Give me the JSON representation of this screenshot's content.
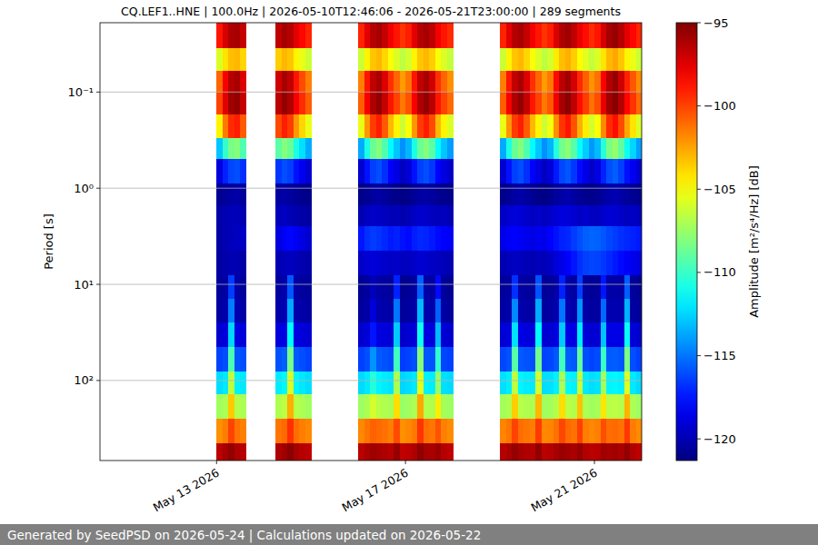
{
  "chart_data": {
    "type": "heatmap",
    "title": "CQ.LEF1..HNE | 100.0Hz | 2026-05-10T12:46:06 - 2026-05-21T23:00:00 | 289 segments",
    "y_label": "Period [s]",
    "footer": "Generated by SeedPSD on 2026-05-24 | Calculations updated on 2026-05-22",
    "color": "jet",
    "log": "y",
    "grid": "y",
    "xlim": [
      "2026-05-10T12:46:06",
      "2026-05-22T00:00:00"
    ],
    "xticks": [
      {
        "value": "2026-05-13T00:00:00",
        "label": "May 13 2026"
      },
      {
        "value": "2026-05-17T00:00:00",
        "label": "May 17 2026"
      },
      {
        "value": "2026-05-21T00:00:00",
        "label": "May 21 2026"
      }
    ],
    "ylim": [
      680,
      0.019
    ],
    "yticks": [
      {
        "value": 0.1,
        "label": "10⁻¹"
      },
      {
        "value": 1,
        "label": "10⁰"
      },
      {
        "value": 10,
        "label": "10¹"
      },
      {
        "value": 100,
        "label": "10²"
      }
    ],
    "colorbar": {
      "label": "Amplitude [m²/s⁴/Hz] [dB]",
      "range": [
        -121.3,
        -95
      ],
      "ticks": [
        {
          "value": -95,
          "label": "−95"
        },
        {
          "value": -100,
          "label": "−100"
        },
        {
          "value": -105,
          "label": "−105"
        },
        {
          "value": -110,
          "label": "−110"
        },
        {
          "value": -115,
          "label": "−115"
        },
        {
          "value": -120,
          "label": "−120"
        }
      ]
    },
    "x": [
      "2026-05-13T00:00:00",
      "2026-05-13T03:00:00",
      "2026-05-13T06:00:00",
      "2026-05-13T09:00:00",
      "2026-05-13T12:00:00",
      "2026-05-13T15:00:00",
      "2026-05-14T06:00:00",
      "2026-05-14T09:00:00",
      "2026-05-14T12:00:00",
      "2026-05-14T15:00:00",
      "2026-05-14T18:00:00",
      "2026-05-14T21:00:00",
      "2026-05-15T00:00:00",
      "2026-05-16T00:00:00",
      "2026-05-16T03:00:00",
      "2026-05-16T06:00:00",
      "2026-05-16T09:00:00",
      "2026-05-16T12:00:00",
      "2026-05-16T15:00:00",
      "2026-05-16T18:00:00",
      "2026-05-16T21:00:00",
      "2026-05-17T00:00:00",
      "2026-05-17T03:00:00",
      "2026-05-17T06:00:00",
      "2026-05-17T09:00:00",
      "2026-05-17T12:00:00",
      "2026-05-17T15:00:00",
      "2026-05-17T18:00:00",
      "2026-05-17T21:00:00",
      "2026-05-18T00:00:00",
      "2026-05-19T00:00:00",
      "2026-05-19T03:00:00",
      "2026-05-19T06:00:00",
      "2026-05-19T09:00:00",
      "2026-05-19T12:00:00",
      "2026-05-19T15:00:00",
      "2026-05-19T18:00:00",
      "2026-05-19T21:00:00",
      "2026-05-20T00:00:00",
      "2026-05-20T03:00:00",
      "2026-05-20T06:00:00",
      "2026-05-20T09:00:00",
      "2026-05-20T12:00:00",
      "2026-05-20T15:00:00",
      "2026-05-20T18:00:00",
      "2026-05-20T21:00:00",
      "2026-05-21T00:00:00",
      "2026-05-21T03:00:00",
      "2026-05-21T06:00:00",
      "2026-05-21T09:00:00",
      "2026-05-21T12:00:00",
      "2026-05-21T15:00:00",
      "2026-05-21T18:00:00",
      "2026-05-21T21:00:00",
      "2026-05-22T00:00:00"
    ],
    "y": [
      0.019,
      0.035,
      0.06,
      0.1,
      0.17,
      0.3,
      0.5,
      0.9,
      1.5,
      2.5,
      4.5,
      8,
      14,
      25,
      45,
      80,
      140,
      250,
      450,
      680
    ],
    "values": [
      [
        -98.8,
        -97.2,
        -96.2,
        -96.0,
        -96.8,
        null,
        -96.6,
        -96.0,
        -96.4,
        -97.6,
        -98.4,
        -99.2,
        null,
        -99.2,
        -97.6,
        -96.4,
        -96.0,
        -96.8,
        -98.0,
        -98.8,
        -99.6,
        -99.0,
        -97.6,
        -96.4,
        -96.0,
        -96.6,
        -98.0,
        -98.8,
        -99.4,
        null,
        -99.2,
        -97.6,
        -96.4,
        -96.0,
        -96.8,
        -98.0,
        -98.8,
        -99.6,
        -99.0,
        -97.4,
        -96.2,
        -95.8,
        -96.6,
        -97.8,
        -98.6,
        -99.4,
        -98.8,
        -97.2,
        -96.0,
        -95.6,
        -96.4,
        -97.6,
        -98.4,
        -99.2
      ],
      [
        -105.8,
        -104.2,
        -103.2,
        -103.0,
        -103.8,
        null,
        -103.6,
        -103.0,
        -103.4,
        -104.6,
        -105.4,
        -106.2,
        null,
        -106.2,
        -104.6,
        -103.4,
        -103.0,
        -103.8,
        -105.0,
        -105.8,
        -106.6,
        -106.0,
        -104.6,
        -103.4,
        -103.0,
        -103.6,
        -105.0,
        -105.8,
        -106.4,
        null,
        -106.2,
        -104.6,
        -103.4,
        -103.0,
        -103.8,
        -105.0,
        -105.8,
        -106.6,
        -106.0,
        -104.4,
        -103.2,
        -102.8,
        -103.6,
        -104.8,
        -105.6,
        -106.4,
        -105.8,
        -104.2,
        -103.0,
        -102.6,
        -103.4,
        -104.6,
        -105.4,
        -106.2
      ],
      [
        -100.9,
        -98.1,
        -96.4,
        -96.0,
        -97.4,
        null,
        -97.1,
        -96.0,
        -96.7,
        -98.8,
        -100.2,
        -101.6,
        null,
        -101.6,
        -98.8,
        -96.7,
        -96.0,
        -97.4,
        -99.5,
        -100.9,
        -102.3,
        -101.3,
        -98.8,
        -96.7,
        -96.0,
        -97.1,
        -99.5,
        -100.9,
        -102.0,
        null,
        -101.6,
        -98.8,
        -96.7,
        -96.0,
        -97.4,
        -99.5,
        -100.9,
        -102.3,
        -101.4,
        -98.5,
        -96.5,
        -95.8,
        -97.2,
        -99.3,
        -100.7,
        -102.1,
        -101.2,
        -98.3,
        -96.3,
        -95.6,
        -97.0,
        -99.1,
        -100.5,
        -101.9
      ],
      [
        -100.0,
        -97.5,
        -95.8,
        -95.5,
        -96.8,
        null,
        -96.5,
        -95.5,
        -96.2,
        -98.1,
        -99.4,
        -100.7,
        null,
        -100.7,
        -98.1,
        -96.2,
        -95.5,
        -96.8,
        -98.8,
        -100.0,
        -101.4,
        -100.4,
        -98.1,
        -96.2,
        -95.5,
        -96.5,
        -98.8,
        -100.0,
        -101.0,
        null,
        -100.7,
        -98.1,
        -96.2,
        -95.5,
        -96.8,
        -98.8,
        -100.0,
        -101.4,
        -100.5,
        -97.9,
        -96.0,
        -95.3,
        -96.6,
        -98.6,
        -99.8,
        -101.2,
        -100.3,
        -97.7,
        -95.8,
        -95.2,
        -96.4,
        -98.4,
        -99.6,
        -101.0
      ],
      [
        -104.6,
        -101.4,
        -99.4,
        -99.0,
        -100.6,
        null,
        -100.2,
        -99.0,
        -99.8,
        -102.2,
        -103.8,
        -105.4,
        null,
        -105.4,
        -102.2,
        -99.8,
        -99.0,
        -100.6,
        -103.0,
        -104.6,
        -106.2,
        -105.0,
        -102.2,
        -99.8,
        -99.0,
        -100.2,
        -103.0,
        -104.6,
        -105.8,
        null,
        -105.4,
        -102.2,
        -99.8,
        -99.0,
        -100.6,
        -103.0,
        -104.6,
        -106.2,
        -105.2,
        -102.0,
        -99.6,
        -98.8,
        -100.4,
        -102.8,
        -104.4,
        -106.0,
        -105.0,
        -101.8,
        -99.4,
        -98.6,
        -100.2,
        -102.6,
        -104.2,
        -105.8
      ],
      [
        -112.9,
        -110.1,
        -108.4,
        -108.0,
        -109.4,
        null,
        -109.1,
        -108.0,
        -108.7,
        -110.8,
        -112.2,
        -113.6,
        null,
        -113.6,
        -110.8,
        -108.7,
        -108.0,
        -109.4,
        -111.5,
        -112.9,
        -114.3,
        -113.3,
        -110.8,
        -108.7,
        -108.0,
        -109.1,
        -111.5,
        -112.9,
        -114.0,
        null,
        -113.6,
        -110.8,
        -108.7,
        -108.0,
        -109.4,
        -111.5,
        -112.9,
        -114.3,
        -113.4,
        -110.6,
        -108.5,
        -107.8,
        -109.2,
        -111.3,
        -112.7,
        -114.1,
        -113.2,
        -110.4,
        -108.3,
        -107.6,
        -109.0,
        -111.1,
        -112.5,
        -113.9
      ],
      [
        -118.8,
        -117.2,
        -116.2,
        -116.0,
        -116.8,
        null,
        -116.6,
        -116.0,
        -116.4,
        -117.6,
        -118.4,
        -119.2,
        null,
        -119.2,
        -117.6,
        -116.4,
        -116.0,
        -116.8,
        -118.0,
        -118.8,
        -119.6,
        -119.0,
        -117.6,
        -116.4,
        -116.0,
        -116.6,
        -118.0,
        -118.8,
        -119.4,
        null,
        -119.2,
        -117.6,
        -116.4,
        -116.0,
        -116.8,
        -118.0,
        -118.8,
        -119.6,
        -119.0,
        -117.4,
        -116.2,
        -115.8,
        -116.6,
        -117.8,
        -118.6,
        -119.4,
        -118.8,
        -117.2,
        -116.0,
        -115.6,
        -116.4,
        -117.6,
        -118.4,
        -119.2
      ],
      [
        -120.8,
        -120.6,
        -120.4,
        -120.3,
        -120.5,
        null,
        -120.4,
        -120.3,
        -120.5,
        -120.7,
        -120.9,
        -121.0,
        null,
        -121.0,
        -120.8,
        -120.5,
        -120.3,
        -120.6,
        -120.8,
        -121.0,
        -121.1,
        -121.0,
        -120.7,
        -120.4,
        -120.3,
        -120.5,
        -120.8,
        -120.9,
        -121.0,
        null,
        -121.0,
        -120.7,
        -120.4,
        -120.2,
        -120.5,
        -120.8,
        -121.0,
        -121.1,
        -120.9,
        -120.6,
        -120.3,
        -120.1,
        -120.4,
        -120.7,
        -120.9,
        -121.0,
        -120.8,
        -120.5,
        -120.2,
        -120.0,
        -120.3,
        -120.6,
        -120.8,
        -120.9
      ],
      [
        -120.2,
        -120.0,
        -119.8,
        -119.9,
        -120.0,
        null,
        -119.8,
        -119.6,
        -119.9,
        -120.1,
        -120.3,
        -120.4,
        null,
        -120.0,
        -119.6,
        -119.4,
        -119.5,
        -119.7,
        -119.9,
        -119.8,
        -120.1,
        -119.9,
        -119.5,
        -119.3,
        -119.4,
        -119.6,
        -119.8,
        -119.7,
        -120.0,
        null,
        -119.5,
        -119.2,
        -119.0,
        -119.1,
        -119.3,
        -119.6,
        -119.4,
        -119.7,
        -119.4,
        -119.1,
        -118.9,
        -119.0,
        -119.2,
        -119.5,
        -119.3,
        -119.6,
        -119.6,
        -119.3,
        -119.1,
        -119.2,
        -119.4,
        -119.7,
        -119.5,
        -119.8
      ],
      [
        -120.3,
        -120.0,
        -119.8,
        -119.6,
        -119.5,
        null,
        -118.8,
        -118.2,
        -117.9,
        -118.3,
        -118.8,
        -119.2,
        null,
        -117.5,
        -116.8,
        -116.5,
        -116.7,
        -117.0,
        -117.4,
        -117.2,
        -117.6,
        -117.8,
        -117.3,
        -117.0,
        -117.1,
        -117.4,
        -117.8,
        -118.0,
        -118.3,
        null,
        -118.6,
        -118.2,
        -118.0,
        -118.3,
        -118.5,
        -118.7,
        -118.4,
        -118.6,
        -118.0,
        -117.6,
        -117.2,
        -117.0,
        -116.5,
        -116.0,
        -115.6,
        -115.4,
        -115.5,
        -115.8,
        -116.2,
        -116.5,
        -116.8,
        -117.0,
        -117.2,
        -117.4
      ],
      [
        -120.4,
        -120.2,
        -120.0,
        -120.1,
        -120.3,
        null,
        -120.0,
        -119.8,
        -119.7,
        -119.9,
        -120.1,
        -120.2,
        null,
        -119.4,
        -119.1,
        -119.0,
        -119.2,
        -119.3,
        -119.5,
        -119.4,
        -119.6,
        -119.7,
        -119.4,
        -119.2,
        -119.3,
        -119.5,
        -119.7,
        -119.8,
        -120.0,
        null,
        -120.0,
        -119.8,
        -119.6,
        -119.7,
        -119.9,
        -120.0,
        -119.8,
        -119.9,
        -119.5,
        -119.0,
        -118.6,
        -118.0,
        -117.5,
        -116.8,
        -116.4,
        -116.2,
        -116.3,
        -116.6,
        -117.0,
        -117.4,
        -117.8,
        -118.2,
        -118.5,
        -118.8
      ],
      [
        -120.6,
        -120.4,
        -116.5,
        -120.3,
        -120.5,
        null,
        -120.4,
        -120.2,
        -115.8,
        -120.3,
        -120.5,
        -120.6,
        null,
        -120.7,
        -120.5,
        -119.8,
        -120.3,
        -120.4,
        -120.6,
        -117.2,
        -120.8,
        -120.7,
        -120.5,
        -115.5,
        -120.3,
        -120.4,
        -117.8,
        -120.6,
        -120.8,
        null,
        -120.6,
        -120.4,
        -116.8,
        -120.3,
        -120.5,
        -120.6,
        -115.9,
        -120.7,
        -120.6,
        -120.3,
        -117.2,
        -120.2,
        -120.4,
        -116.4,
        -120.5,
        -120.7,
        -120.6,
        -117.5,
        -120.3,
        -120.2,
        -120.4,
        -115.6,
        -120.6,
        -120.8
      ],
      [
        -120.4,
        -120.2,
        -114.8,
        -120.1,
        -120.3,
        null,
        -120.2,
        -120.0,
        -113.6,
        -120.1,
        -120.3,
        -120.4,
        null,
        -120.5,
        -120.3,
        -119.0,
        -120.1,
        -120.2,
        -120.4,
        -115.0,
        -120.6,
        -120.5,
        -120.3,
        -113.2,
        -120.1,
        -120.2,
        -115.5,
        -120.4,
        -120.6,
        null,
        -120.4,
        -120.2,
        -114.5,
        -120.1,
        -120.3,
        -120.4,
        -113.6,
        -120.5,
        -120.4,
        -120.1,
        -115.0,
        -120.0,
        -120.2,
        -114.2,
        -120.3,
        -120.5,
        -120.4,
        -115.3,
        -120.1,
        -120.0,
        -120.2,
        -113.4,
        -120.4,
        -120.6
      ],
      [
        -119.2,
        -119.0,
        -112.5,
        -118.8,
        -119.0,
        null,
        -118.9,
        -118.7,
        -111.4,
        -118.8,
        -119.0,
        -119.2,
        null,
        -119.3,
        -119.0,
        -117.5,
        -118.8,
        -118.9,
        -119.1,
        -112.8,
        -119.4,
        -119.2,
        -119.0,
        -111.0,
        -118.8,
        -118.9,
        -113.2,
        -119.1,
        -119.3,
        null,
        -119.1,
        -118.9,
        -112.2,
        -118.7,
        -118.9,
        -119.0,
        -111.5,
        -119.2,
        -119.1,
        -118.8,
        -112.8,
        -118.6,
        -118.8,
        -111.9,
        -119.0,
        -119.2,
        -119.1,
        -113.0,
        -118.7,
        -118.6,
        -118.8,
        -111.2,
        -119.0,
        -119.3
      ],
      [
        -116.3,
        -116.0,
        -109.5,
        -115.8,
        -116.0,
        null,
        -115.9,
        -115.6,
        -108.4,
        -115.7,
        -116.0,
        -116.3,
        null,
        -116.4,
        -116.0,
        -114.2,
        -115.7,
        -115.9,
        -116.1,
        -109.8,
        -116.5,
        -116.3,
        -116.0,
        -108.0,
        -115.8,
        -115.9,
        -110.2,
        -116.2,
        -116.4,
        null,
        -116.2,
        -115.9,
        -109.2,
        -115.7,
        -115.9,
        -116.0,
        -108.5,
        -116.3,
        -116.2,
        -115.8,
        -109.8,
        -115.6,
        -115.8,
        -108.9,
        -116.0,
        -116.3,
        -116.1,
        -110.0,
        -115.7,
        -115.6,
        -115.8,
        -108.2,
        -116.0,
        -116.4
      ],
      [
        -112.3,
        -112.0,
        -106.5,
        -111.8,
        -112.0,
        null,
        -111.9,
        -111.6,
        -105.8,
        -111.7,
        -112.0,
        -112.3,
        null,
        -112.4,
        -112.0,
        -110.5,
        -111.7,
        -111.9,
        -112.1,
        -107.0,
        -112.5,
        -112.3,
        -112.0,
        -105.5,
        -111.8,
        -111.9,
        -107.5,
        -112.2,
        -112.4,
        null,
        -112.2,
        -111.9,
        -106.6,
        -111.7,
        -111.9,
        -112.0,
        -106.0,
        -112.3,
        -112.2,
        -111.8,
        -107.0,
        -111.6,
        -111.8,
        -106.3,
        -112.0,
        -112.3,
        -112.1,
        -107.2,
        -111.7,
        -111.6,
        -111.8,
        -105.7,
        -112.0,
        -112.4
      ],
      [
        -107.3,
        -107.0,
        -103.5,
        -106.8,
        -107.0,
        null,
        -106.9,
        -106.6,
        -102.8,
        -106.7,
        -107.0,
        -107.3,
        null,
        -107.4,
        -107.0,
        -106.0,
        -106.7,
        -106.9,
        -107.1,
        -104.0,
        -107.5,
        -107.3,
        -107.0,
        -102.6,
        -106.8,
        -106.9,
        -104.4,
        -107.2,
        -107.4,
        null,
        -107.2,
        -106.9,
        -103.6,
        -106.7,
        -106.9,
        -107.0,
        -103.0,
        -107.3,
        -107.2,
        -106.8,
        -104.0,
        -106.6,
        -106.8,
        -103.3,
        -107.0,
        -107.3,
        -107.1,
        -104.2,
        -106.7,
        -106.6,
        -106.8,
        -102.9,
        -107.0,
        -107.4
      ],
      [
        -102.0,
        -101.5,
        -100.0,
        -101.2,
        -101.6,
        null,
        -101.3,
        -101.0,
        -99.5,
        -101.1,
        -101.5,
        -101.8,
        null,
        -101.8,
        -101.3,
        -100.8,
        -101.0,
        -101.2,
        -101.5,
        -100.2,
        -102.0,
        -101.8,
        -101.4,
        -99.6,
        -101.1,
        -101.3,
        -100.4,
        -101.6,
        -101.9,
        null,
        -101.7,
        -101.3,
        -100.0,
        -101.1,
        -101.3,
        -101.5,
        -99.8,
        -101.8,
        -101.7,
        -101.2,
        -100.1,
        -101.0,
        -101.2,
        -99.9,
        -101.5,
        -101.8,
        -101.6,
        -100.3,
        -101.1,
        -101.0,
        -101.2,
        -99.7,
        -101.5,
        -101.9
      ],
      [
        -96.5,
        -96.0,
        -95.5,
        -96.2,
        -96.4,
        null,
        -96.2,
        -95.8,
        -95.3,
        -96.0,
        -96.4,
        -96.6,
        null,
        -96.5,
        -96.1,
        -95.8,
        -96.0,
        -96.2,
        -96.4,
        -95.6,
        -96.7,
        -96.5,
        -96.2,
        -95.4,
        -96.0,
        -96.1,
        -95.7,
        -96.4,
        -96.6,
        null,
        -96.4,
        -96.1,
        -95.6,
        -96.0,
        -96.2,
        -96.3,
        -95.5,
        -96.5,
        -96.4,
        -96.0,
        -95.7,
        -95.9,
        -96.1,
        -95.6,
        -96.3,
        -96.5,
        -96.4,
        -95.8,
        -96.0,
        -95.9,
        -96.1,
        -95.5,
        -96.3,
        -96.6
      ]
    ]
  }
}
